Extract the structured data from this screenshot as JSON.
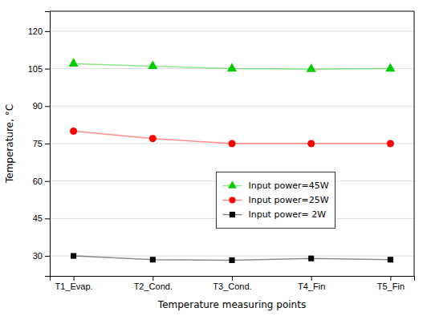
{
  "chart_data": {
    "type": "line",
    "categories": [
      "T1_Evap.",
      "T2_Cond.",
      "T3_Cond.",
      "T4_Fin",
      "T5_Fin"
    ],
    "series": [
      {
        "name": "Input power=45W",
        "color": "#00cc00",
        "marker": "triangle",
        "values": [
          107,
          106,
          105,
          104.8,
          105
        ]
      },
      {
        "name": "Input power=25W",
        "color": "#ff0000",
        "marker": "circle",
        "values": [
          80,
          77,
          75,
          75,
          75
        ]
      },
      {
        "name": "Input power= 2W",
        "color": "#000000",
        "marker": "square",
        "values": [
          30,
          28.5,
          28.3,
          29,
          28.5
        ]
      }
    ],
    "xlabel": "Temperature measuring points",
    "ylabel": "Temperature, °C",
    "ylim": [
      22,
      128
    ],
    "yticks": [
      30,
      45,
      60,
      75,
      90,
      105,
      120
    ],
    "grid": true,
    "legend": "lower center"
  }
}
